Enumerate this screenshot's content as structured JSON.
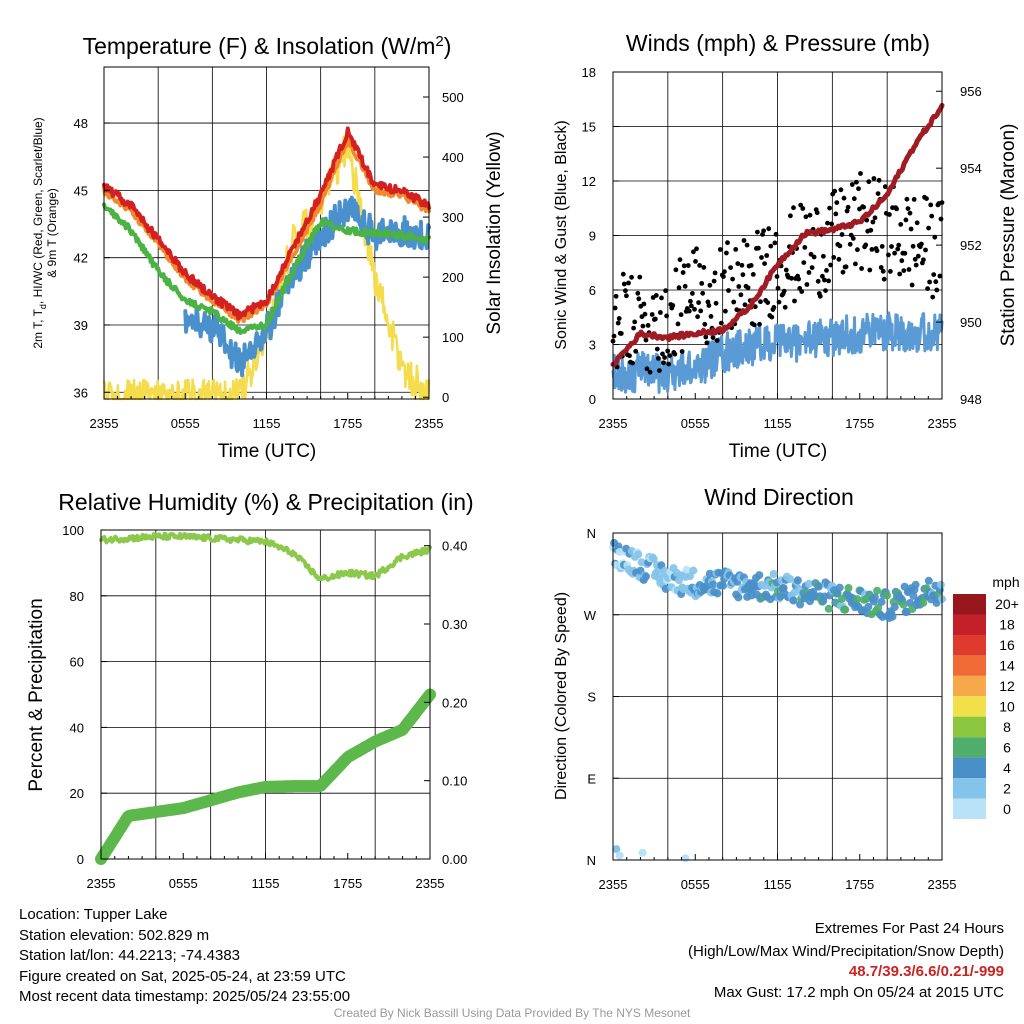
{
  "panels": {
    "temp": {
      "title": "Temperature (F) & Insolation (W/m",
      "title_sup": "2",
      "title_close": ")",
      "xlabel": "Time (UTC)",
      "ylabel_lines": [
        "2m T, T",
        "d",
        ", HI/WC (Red, Green, Scarlet/Blue)",
        "& 9m T (Orange)"
      ],
      "y2label": "Solar Insolation (Yellow)",
      "yticks": [
        "36",
        "39",
        "42",
        "45",
        "48"
      ],
      "y2ticks": [
        "0",
        "100",
        "200",
        "300",
        "400",
        "500"
      ],
      "xticks": [
        "2355",
        "0555",
        "1155",
        "1755",
        "2355"
      ]
    },
    "wind": {
      "title": "Winds (mph) & Pressure (mb)",
      "xlabel": "Time (UTC)",
      "ylabel": "Sonic Wind & Gust (Blue, Black)",
      "y2label": "Station Pressure (Maroon)",
      "yticks": [
        "0",
        "3",
        "6",
        "9",
        "12",
        "15",
        "18"
      ],
      "y2ticks": [
        "948",
        "950",
        "952",
        "954",
        "956"
      ],
      "xticks": [
        "2355",
        "0555",
        "1155",
        "1755",
        "2355"
      ]
    },
    "rh": {
      "title": "Relative Humidity (%) & Precipitation (in)",
      "ylabel": "Percent & Precipitation",
      "yticks": [
        "0",
        "20",
        "40",
        "60",
        "80",
        "100"
      ],
      "y2ticks": [
        "0.00",
        "0.10",
        "0.20",
        "0.30",
        "0.40"
      ],
      "xticks": [
        "2355",
        "0555",
        "1155",
        "1755",
        "2355"
      ]
    },
    "dir": {
      "title": "Wind Direction",
      "ylabel": "Direction (Colored By Speed)",
      "yticks": [
        "N",
        "E",
        "S",
        "W",
        "N"
      ],
      "xticks": [
        "2355",
        "0555",
        "1155",
        "1755",
        "2355"
      ],
      "legend_title": "mph",
      "legend_labels": [
        "20+",
        "18",
        "16",
        "14",
        "12",
        "10",
        "8",
        "6",
        "4",
        "2",
        "0"
      ]
    }
  },
  "colors": {
    "temp_red": "#d42020",
    "temp_orange": "#f08a2c",
    "dewpoint_green": "#4ab343",
    "heat_index_blue": "#4a90cc",
    "solar_yellow": "#f4dc4c",
    "gust_black": "#000000",
    "wind_blue": "#5b9bd5",
    "pressure_maroon": "#a01c24",
    "rh_green": "#8cc84b",
    "precip_green": "#5cb84a",
    "speed_scale": [
      "#b8e3f7",
      "#84c3ea",
      "#4a8fc8",
      "#4fae6c",
      "#8cc63e",
      "#f0e04a",
      "#f7a84a",
      "#ef6a35",
      "#df3a2e",
      "#c4202a",
      "#96181d"
    ]
  },
  "chart_data": [
    {
      "type": "line",
      "title": "Temperature (F) & Insolation (W/m2)",
      "xlabel": "Time (UTC)",
      "ylabel": "2m T, Td, HI/WC (Red, Green, Scarlet/Blue) & 9m T (Orange)",
      "y2label": "Solar Insolation (Yellow)",
      "x": [
        "2355",
        "0155",
        "0355",
        "0555",
        "0755",
        "0955",
        "1155",
        "1355",
        "1555",
        "1755",
        "1955",
        "2155",
        "2355"
      ],
      "ylim": [
        35.7,
        50.5
      ],
      "y2lim": [
        -3,
        550
      ],
      "series": [
        {
          "name": "2m T (Red)",
          "axis": "left",
          "values": [
            45.2,
            44.3,
            42.8,
            41.3,
            40.3,
            39.4,
            40.1,
            42.5,
            44.8,
            47.6,
            45.2,
            45.0,
            44.3
          ]
        },
        {
          "name": "9m T (Orange)",
          "axis": "left",
          "values": [
            45.0,
            44.1,
            42.6,
            41.1,
            40.1,
            39.2,
            39.9,
            42.2,
            44.4,
            47.3,
            45.0,
            44.8,
            44.1
          ]
        },
        {
          "name": "Td (Green)",
          "axis": "left",
          "values": [
            44.4,
            43.2,
            41.4,
            40.1,
            39.6,
            38.7,
            39.0,
            41.5,
            43.6,
            43.2,
            43.1,
            43.0,
            42.8
          ]
        },
        {
          "name": "HI/WC (Blue)",
          "axis": "left",
          "values": [
            null,
            null,
            null,
            39.3,
            38.9,
            37.3,
            38.7,
            41.3,
            43.0,
            44.2,
            43.0,
            43.2,
            42.8
          ]
        },
        {
          "name": "Solar Insolation (Yellow)",
          "axis": "right",
          "values": [
            0,
            0,
            0,
            0,
            0,
            0,
            110,
            260,
            320,
            420,
            200,
            50,
            0
          ]
        }
      ]
    },
    {
      "type": "line",
      "title": "Winds (mph) & Pressure (mb)",
      "xlabel": "Time (UTC)",
      "ylabel": "Sonic Wind & Gust (Blue, Black)",
      "y2label": "Station Pressure (Maroon)",
      "x": [
        "2355",
        "0155",
        "0355",
        "0555",
        "0755",
        "0955",
        "1155",
        "1355",
        "1555",
        "1755",
        "1955",
        "2155",
        "2355"
      ],
      "ylim": [
        0,
        18
      ],
      "y2lim": [
        948,
        956.5
      ],
      "series": [
        {
          "name": "Sonic Wind (Blue)",
          "axis": "left",
          "values": [
            1.3,
            1.5,
            1.4,
            1.7,
            2.5,
            2.9,
            3.1,
            3.2,
            3.4,
            3.6,
            3.8,
            3.7,
            3.6
          ]
        },
        {
          "name": "Gust (Black)",
          "axis": "left",
          "values": [
            4.2,
            4.0,
            4.3,
            5.7,
            6.0,
            6.2,
            7.5,
            8.1,
            8.6,
            9.7,
            9.3,
            8.6,
            8.2
          ]
        },
        {
          "name": "Station Pressure (Maroon)",
          "axis": "right",
          "values": [
            948.9,
            949.7,
            949.6,
            949.7,
            949.8,
            950.4,
            951.5,
            952.3,
            952.4,
            952.6,
            953.3,
            954.6,
            955.6
          ]
        }
      ]
    },
    {
      "type": "line",
      "title": "Relative Humidity (%) & Precipitation (in)",
      "ylabel": "Percent & Precipitation",
      "x": [
        "2355",
        "0155",
        "0355",
        "0555",
        "0755",
        "0955",
        "1155",
        "1355",
        "1555",
        "1755",
        "1955",
        "2155",
        "2355"
      ],
      "ylim": [
        0,
        100
      ],
      "y2lim": [
        0,
        0.42
      ],
      "series": [
        {
          "name": "Relative Humidity",
          "axis": "left",
          "values": [
            97,
            97.5,
            98,
            98,
            97.5,
            97,
            96.5,
            93,
            85,
            87,
            86,
            92,
            94
          ]
        },
        {
          "name": "Precipitation",
          "axis": "right",
          "values": [
            0,
            0.055,
            0.06,
            0.065,
            0.075,
            0.085,
            0.092,
            0.093,
            0.093,
            0.13,
            0.15,
            0.165,
            0.21
          ]
        }
      ]
    },
    {
      "type": "scatter",
      "title": "Wind Direction",
      "ylabel": "Direction (Colored By Speed)",
      "x": [
        "2355",
        "0155",
        "0355",
        "0555",
        "0755",
        "0955",
        "1155",
        "1355",
        "1555",
        "1755",
        "1955",
        "2155",
        "2355"
      ],
      "yticks": [
        "N",
        "E",
        "S",
        "W",
        "N"
      ],
      "series": [
        {
          "name": "Wind Direction",
          "values": [
            340,
            325,
            310,
            305,
            305,
            302,
            300,
            295,
            290,
            285,
            280,
            290,
            300
          ]
        }
      ],
      "legend_title": "mph"
    }
  ],
  "info": {
    "location": "Location: Tupper Lake",
    "elevation": "Station elevation: 502.829 m",
    "latlon": "Station lat/lon: 44.2213; -74.4383",
    "created": "Figure created on Sat, 2025-05-24, at 23:59 UTC",
    "recent": "Most recent data timestamp: 2025/05/24 23:55:00"
  },
  "extremes": {
    "heading": "Extremes For Past 24 Hours",
    "fields": "(High/Low/Max Wind/Precipitation/Snow Depth)",
    "values": "48.7/39.3/6.6/0.21/-999",
    "max_gust": "Max Gust: 17.2 mph On 05/24 at 2015 UTC"
  },
  "footer": "Created By Nick Bassill Using Data Provided By The NYS Mesonet"
}
